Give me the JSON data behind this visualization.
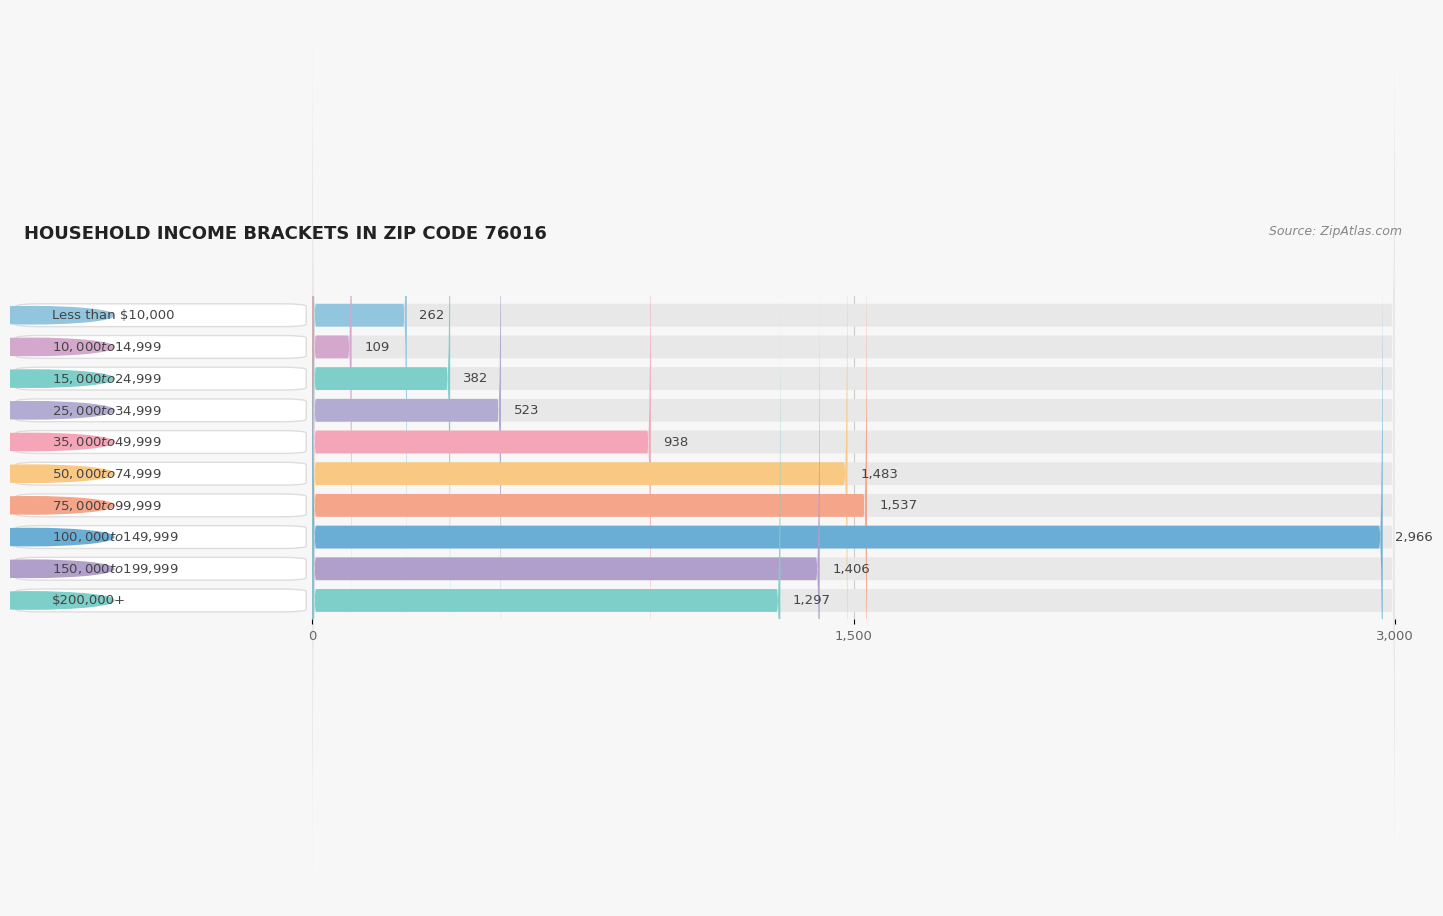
{
  "title": "HOUSEHOLD INCOME BRACKETS IN ZIP CODE 76016",
  "source": "Source: ZipAtlas.com",
  "categories": [
    "Less than $10,000",
    "$10,000 to $14,999",
    "$15,000 to $24,999",
    "$25,000 to $34,999",
    "$35,000 to $49,999",
    "$50,000 to $74,999",
    "$75,000 to $99,999",
    "$100,000 to $149,999",
    "$150,000 to $199,999",
    "$200,000+"
  ],
  "values": [
    262,
    109,
    382,
    523,
    938,
    1483,
    1537,
    2966,
    1406,
    1297
  ],
  "bar_colors": [
    "#92c5de",
    "#d4a8cc",
    "#7ececa",
    "#b2abd2",
    "#f4a6b8",
    "#f9c984",
    "#f4a58a",
    "#6aaed6",
    "#b09fca",
    "#7ececa"
  ],
  "value_labels": [
    "262",
    "109",
    "382",
    "523",
    "938",
    "1,483",
    "1,537",
    "2,966",
    "1,406",
    "1,297"
  ],
  "xlim": [
    0,
    3000
  ],
  "xticks": [
    0,
    1500,
    3000
  ],
  "background_color": "#f7f7f7",
  "bar_bg_color": "#e8e8e8",
  "label_bg_color": "#ffffff",
  "title_fontsize": 13,
  "label_fontsize": 9.5,
  "value_fontsize": 9.5,
  "source_fontsize": 9
}
